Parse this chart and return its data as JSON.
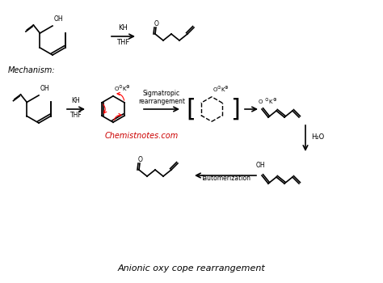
{
  "title": "Anionic oxy cope rearrangement",
  "watermark": "Chemistnotes.com",
  "watermark_color": "#cc0000",
  "background_color": "#ffffff",
  "text_color": "#000000",
  "mechanism_label": "Mechanism:",
  "reagent1": "KH",
  "reagent2": "THF",
  "sigmatropic_label": "Sigmatropic\nrearrangement",
  "h2o_label": "H₂O",
  "tautomerization_label": "Tautomerization"
}
